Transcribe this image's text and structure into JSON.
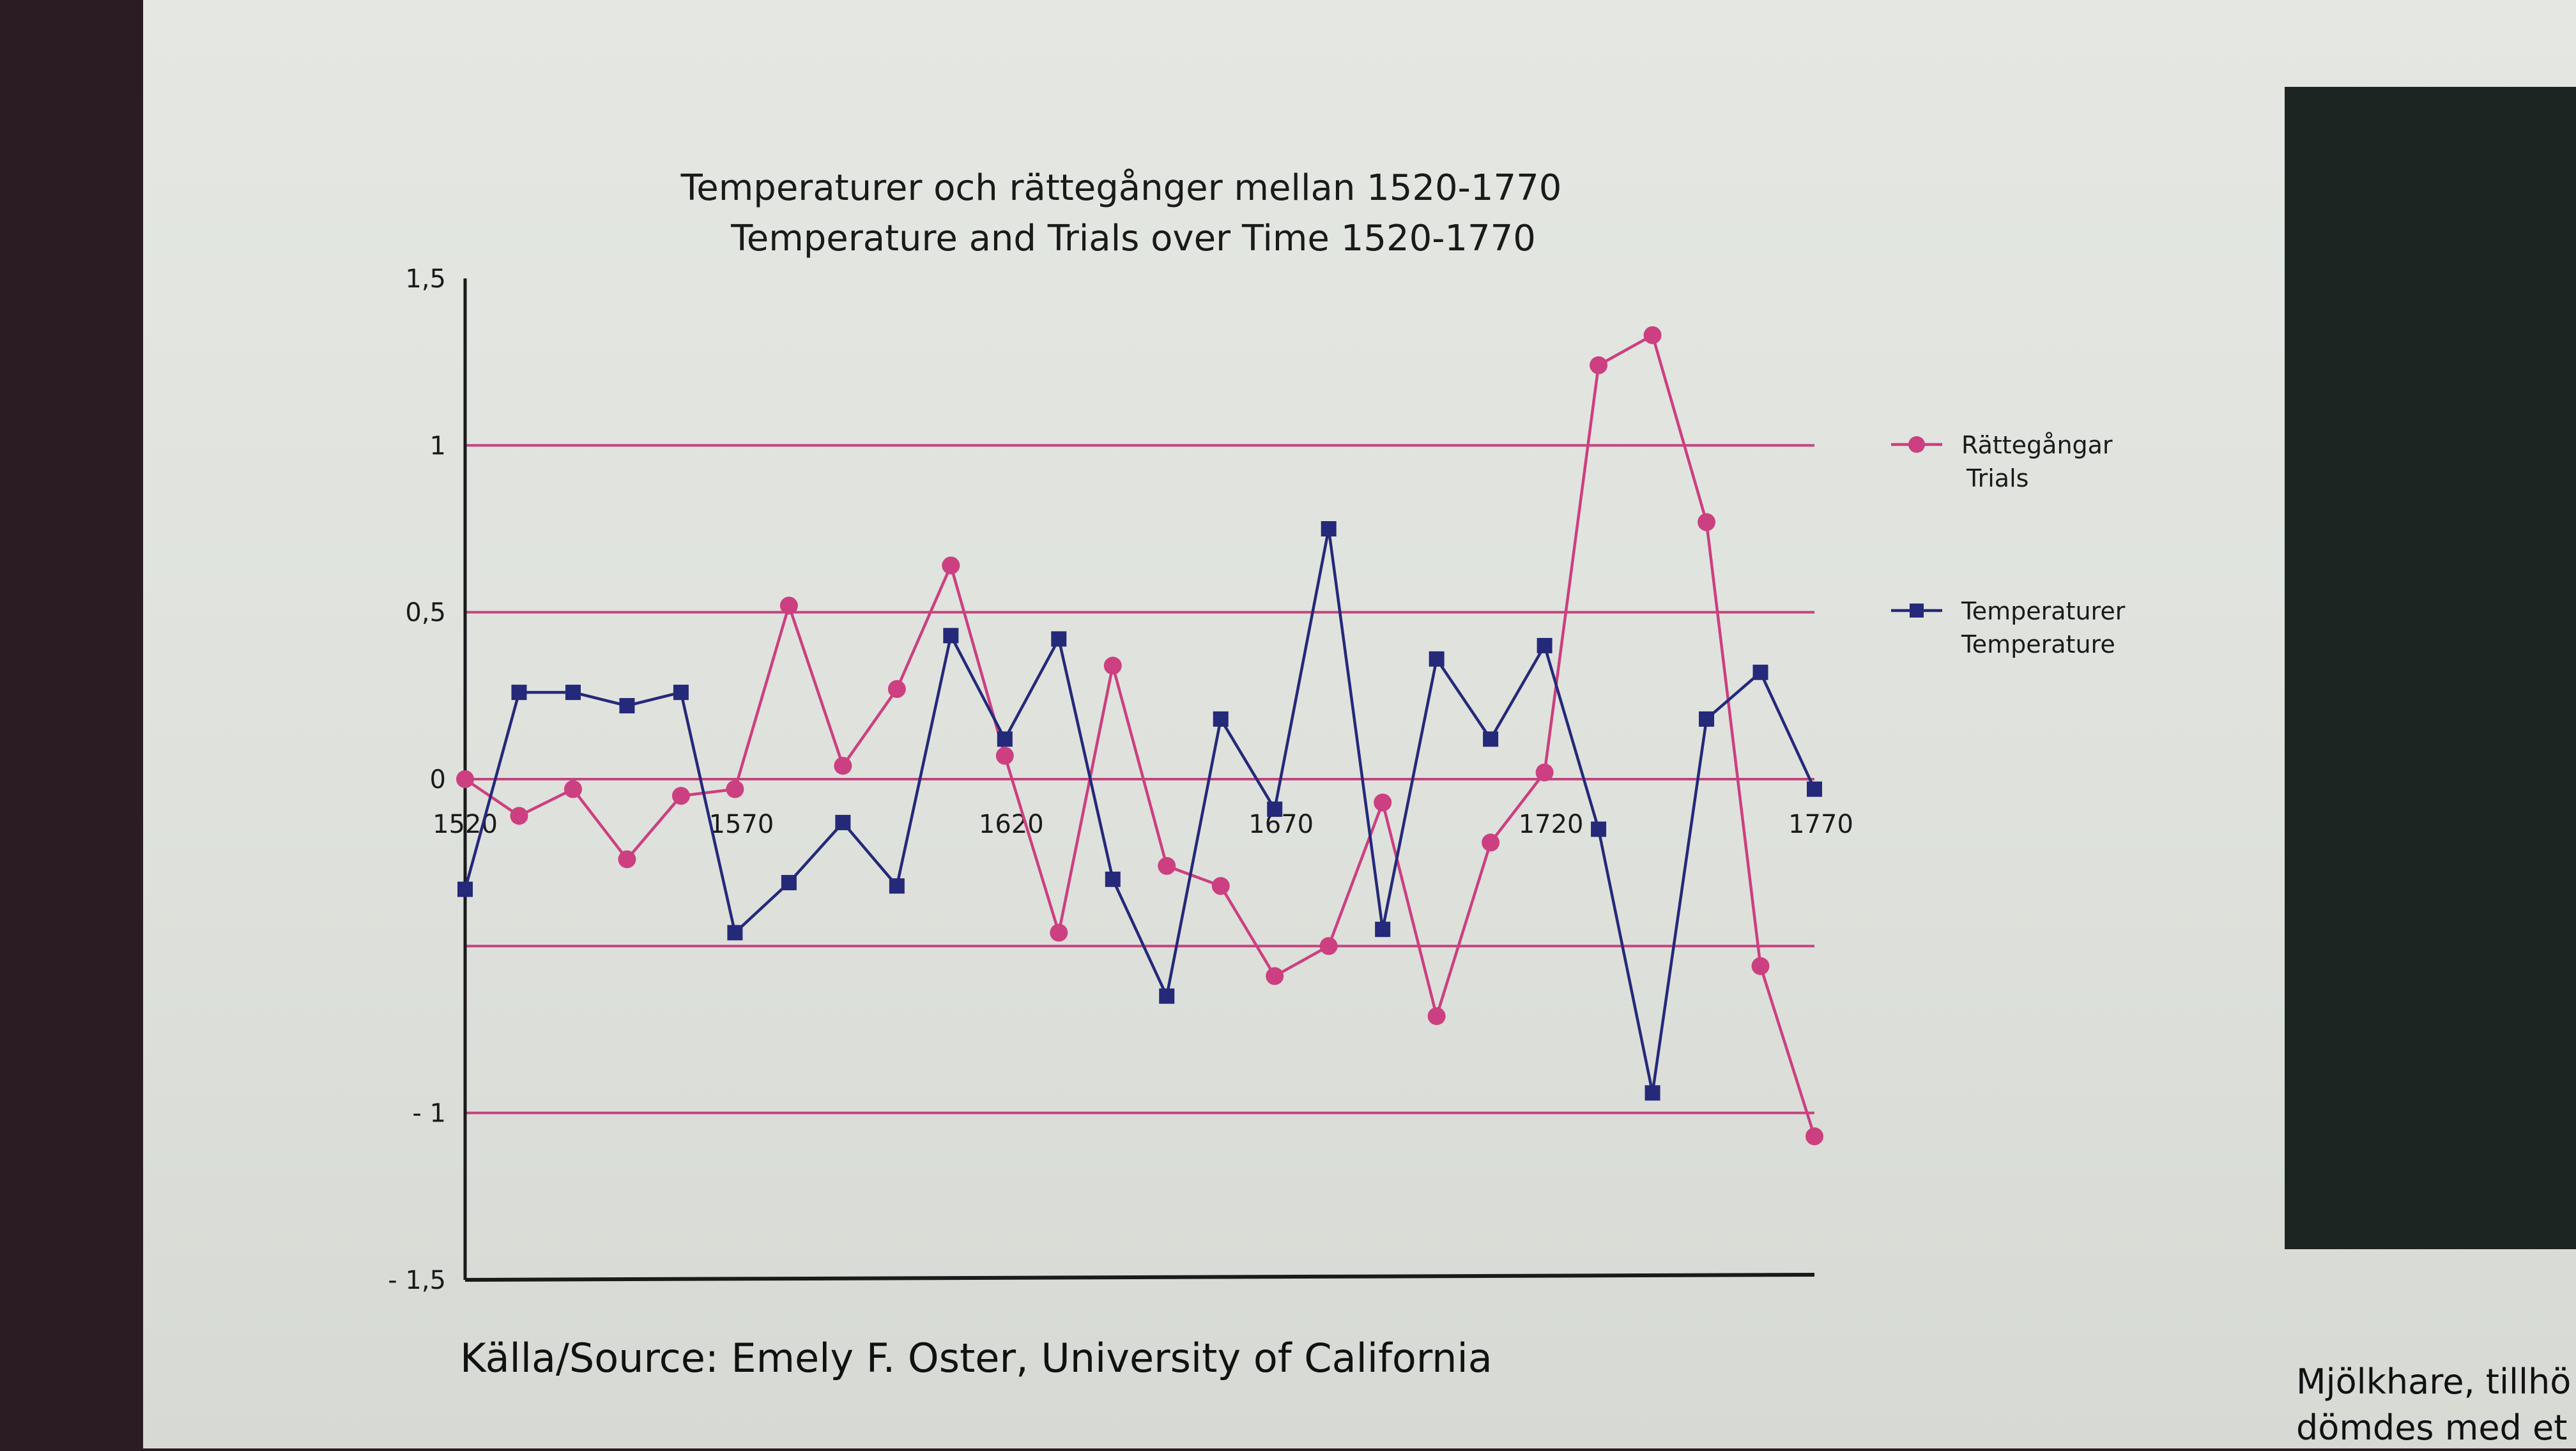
{
  "chart_data": {
    "type": "line",
    "title": "Temperaturer och rättegånger mellan 1520-1770",
    "subtitle": "Temperature and Trials over Time 1520-1770",
    "xlabel": "",
    "ylabel": "",
    "xlim": [
      1520,
      1770
    ],
    "ylim": [
      -1.5,
      1.5
    ],
    "y_ticks": [
      1.5,
      1,
      0.5,
      0,
      -0.5,
      -1,
      -1.5
    ],
    "y_tick_labels": [
      "1,5",
      "1",
      "0,5",
      "0",
      "",
      "- 1",
      "- 1,5"
    ],
    "gridlines": [
      1,
      0.5,
      0,
      -0.5,
      -1
    ],
    "x_tick_labels": [
      "1520",
      "1570",
      "1620",
      "1670",
      "1720",
      "1770"
    ],
    "x_ticks": [
      1520,
      1570,
      1620,
      1670,
      1720,
      1770
    ],
    "legend_position": "right",
    "x": [
      1520,
      1530,
      1540,
      1550,
      1560,
      1570,
      1580,
      1590,
      1600,
      1610,
      1620,
      1630,
      1640,
      1650,
      1660,
      1670,
      1680,
      1690,
      1700,
      1710,
      1720,
      1730,
      1740,
      1750,
      1760,
      1770
    ],
    "series": [
      {
        "name": "Rättegångar",
        "name_en": "Trials",
        "color": "#cc3f80",
        "marker": "circle",
        "values": [
          0.0,
          -0.11,
          -0.03,
          -0.24,
          -0.05,
          -0.03,
          0.52,
          0.04,
          0.27,
          0.64,
          0.07,
          -0.46,
          0.34,
          -0.26,
          -0.32,
          -0.59,
          -0.5,
          -0.07,
          -0.71,
          -0.19,
          0.02,
          1.24,
          1.33,
          0.77,
          -0.56,
          -1.07
        ]
      },
      {
        "name": "Temperaturer",
        "name_en": "Temperature",
        "color": "#24297a",
        "marker": "square",
        "values": [
          -0.33,
          0.26,
          0.26,
          0.22,
          0.26,
          -0.46,
          -0.31,
          -0.13,
          -0.32,
          0.43,
          0.12,
          0.42,
          -0.3,
          -0.65,
          0.18,
          -0.09,
          0.75,
          -0.45,
          0.36,
          0.12,
          0.4,
          -0.15,
          -0.94,
          0.18,
          0.32,
          -0.03
        ]
      }
    ]
  },
  "source": "Källa/Source: Emely F. Oster, University of California",
  "caption_lines": [
    "Mjölkhare, tillhö",
    "dömdes med et"
  ]
}
